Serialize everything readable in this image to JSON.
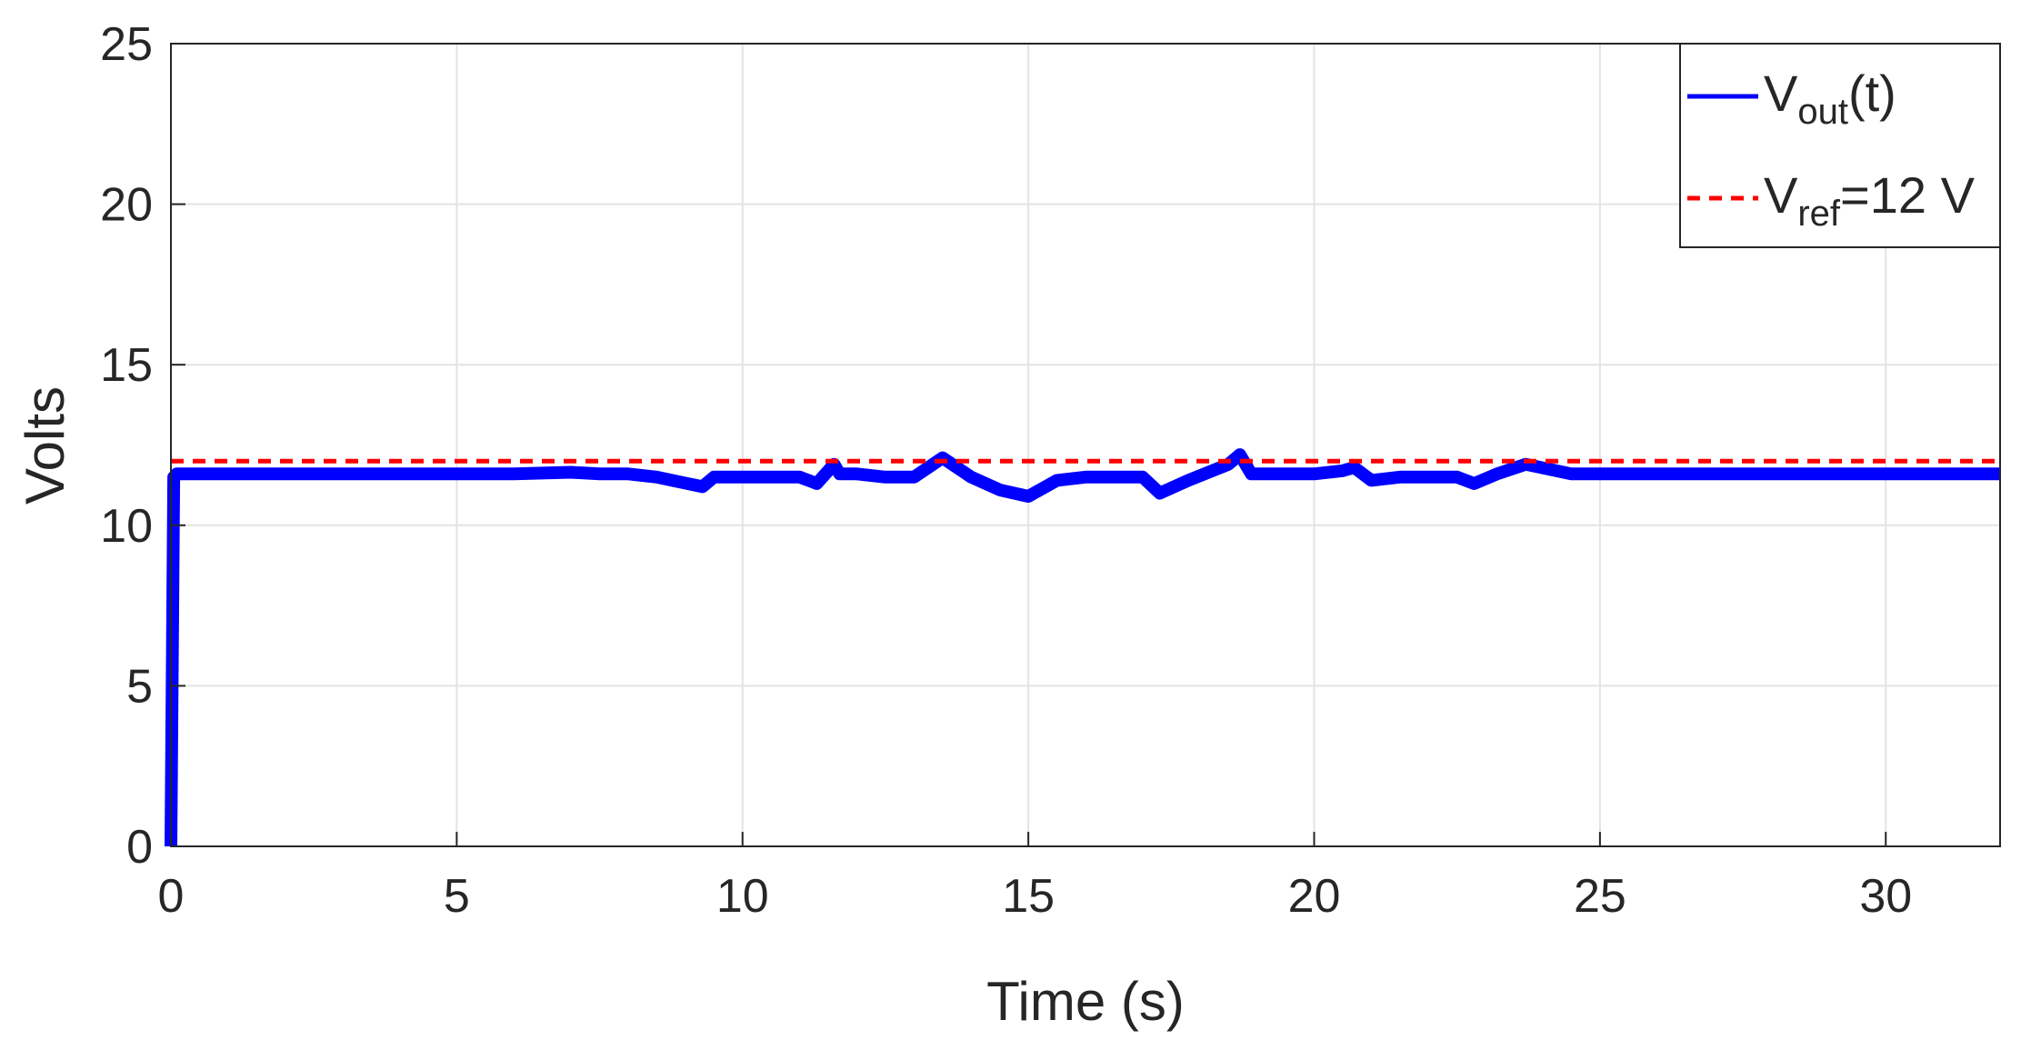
{
  "chart_data": {
    "type": "line",
    "xlabel": "Time (s)",
    "ylabel": "Volts",
    "xlim": [
      0,
      32
    ],
    "ylim": [
      0,
      25
    ],
    "x_ticks": [
      0,
      5,
      10,
      15,
      20,
      25,
      30
    ],
    "y_ticks": [
      0,
      5,
      10,
      15,
      20,
      25
    ],
    "x_tick_labels": [
      "0",
      "5",
      "10",
      "15",
      "20",
      "25",
      "30"
    ],
    "y_tick_labels": [
      "0",
      "5",
      "10",
      "15",
      "20",
      "25"
    ],
    "grid": true,
    "legend_position": "top-right",
    "series": [
      {
        "name_main": "V",
        "name_sub": "out",
        "name_suffix": "(t)",
        "color": "#0000ff",
        "style": "solid",
        "x": [
          0,
          0.05,
          0.1,
          2,
          4,
          6,
          7,
          7.5,
          8,
          8.5,
          9.3,
          9.5,
          10,
          10.5,
          11,
          11.3,
          11.6,
          11.7,
          12,
          12.5,
          13,
          13.5,
          14,
          14.5,
          15,
          15.5,
          16,
          16.5,
          17,
          17.3,
          17.8,
          18.5,
          18.7,
          18.9,
          19.5,
          20,
          20.5,
          20.7,
          21,
          21.5,
          22,
          22.5,
          22.8,
          23.2,
          23.7,
          24.5,
          25,
          26,
          27,
          28,
          29,
          30,
          31,
          32
        ],
        "y": [
          0,
          11.5,
          11.6,
          11.6,
          11.6,
          11.6,
          11.65,
          11.6,
          11.6,
          11.5,
          11.2,
          11.5,
          11.5,
          11.5,
          11.5,
          11.3,
          11.9,
          11.6,
          11.6,
          11.5,
          11.5,
          12.1,
          11.5,
          11.1,
          10.9,
          11.4,
          11.5,
          11.5,
          11.5,
          11.0,
          11.4,
          11.9,
          12.2,
          11.6,
          11.6,
          11.6,
          11.7,
          11.8,
          11.4,
          11.5,
          11.5,
          11.5,
          11.3,
          11.6,
          11.9,
          11.6,
          11.6,
          11.6,
          11.6,
          11.6,
          11.6,
          11.6,
          11.6,
          11.6
        ]
      },
      {
        "name_main": "V",
        "name_sub": "ref",
        "name_suffix": "=12 V",
        "color": "#ff0000",
        "style": "dashed",
        "x": [
          0,
          32
        ],
        "y": [
          12,
          12
        ]
      }
    ]
  }
}
